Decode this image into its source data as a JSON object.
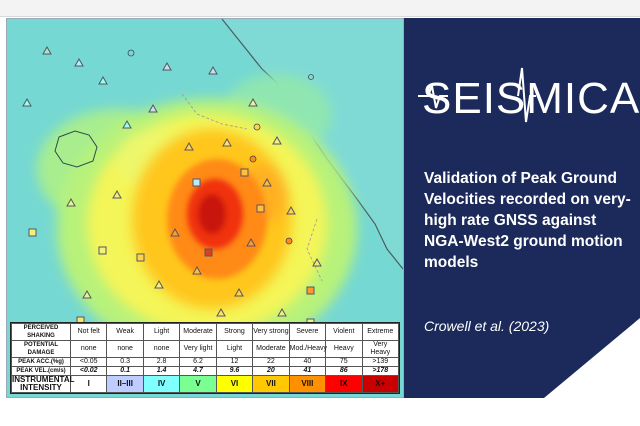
{
  "journal": {
    "name": "SEISMICA"
  },
  "paper": {
    "title": "Validation of Peak Ground Velocities recorded on very-high rate GNSS against NGA-West2 ground motion models",
    "citation": "Crowell et al. (2023)"
  },
  "colors": {
    "panel_bg": "#1b2a5a",
    "map_sea": "#75d8d2",
    "map_land_low": "#8ae4b4"
  },
  "legend": {
    "rows": [
      {
        "label": "PERCEIVED SHAKING",
        "cells": [
          "Not felt",
          "Weak",
          "Light",
          "Moderate",
          "Strong",
          "Very strong",
          "Severe",
          "Violent",
          "Extreme"
        ]
      },
      {
        "label": "POTENTIAL DAMAGE",
        "cells": [
          "none",
          "none",
          "none",
          "Very light",
          "Light",
          "Moderate",
          "Mod./Heavy",
          "Heavy",
          "Very Heavy"
        ]
      },
      {
        "label": "PEAK ACC.(%g)",
        "cells": [
          "<0.05",
          "0.3",
          "2.8",
          "6.2",
          "12",
          "22",
          "40",
          "75",
          ">139"
        ]
      },
      {
        "label": "PEAK VEL.(cm/s)",
        "cells": [
          "<0.02",
          "0.1",
          "1.4",
          "4.7",
          "9.6",
          "20",
          "41",
          "86",
          ">178"
        ]
      },
      {
        "label": "INSTRUMENTAL INTENSITY",
        "cells": [
          "I",
          "II–III",
          "IV",
          "V",
          "VI",
          "VII",
          "VIII",
          "IX",
          "X+"
        ]
      }
    ],
    "intensity_colors": [
      "#ffffff",
      "#bfccff",
      "#a0e6ff",
      "#80ffff",
      "#7aff93",
      "#ffff00",
      "#ffc800",
      "#ff9100",
      "#ff0000",
      "#c80000"
    ]
  }
}
